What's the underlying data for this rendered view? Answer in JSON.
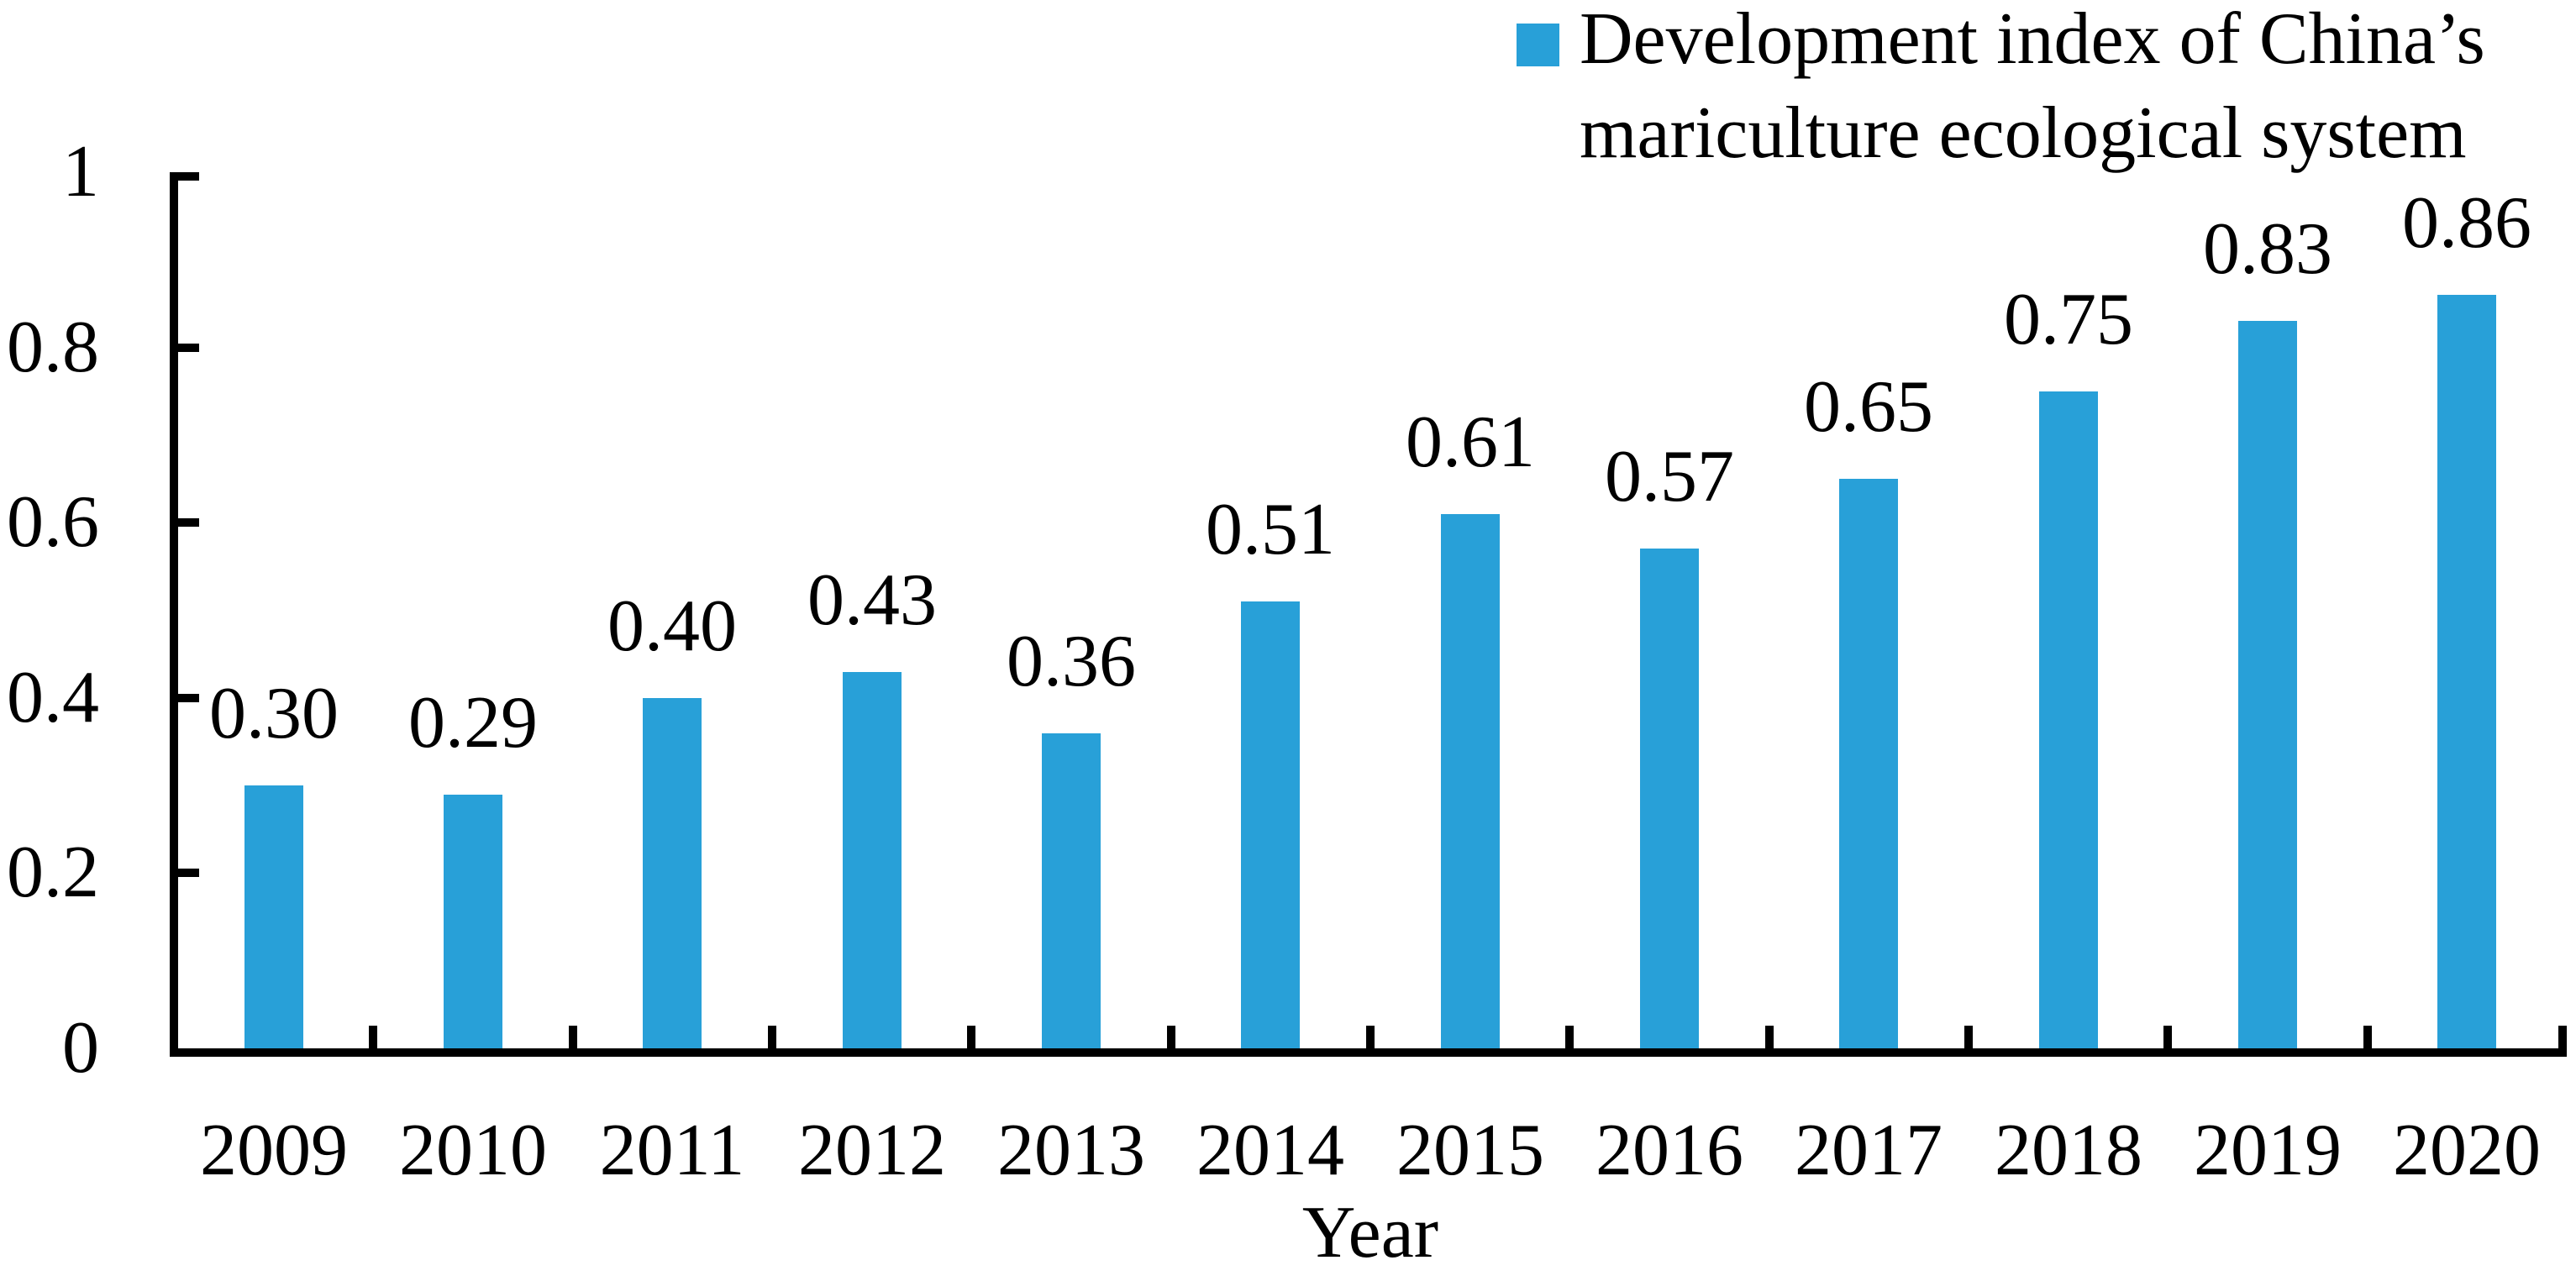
{
  "chart_data": {
    "type": "bar",
    "title": "",
    "xlabel": "Year",
    "ylabel": "",
    "categories": [
      "2009",
      "2010",
      "2011",
      "2012",
      "2013",
      "2014",
      "2015",
      "2016",
      "2017",
      "2018",
      "2019",
      "2020"
    ],
    "values": [
      0.3,
      0.29,
      0.4,
      0.43,
      0.36,
      0.51,
      0.61,
      0.57,
      0.65,
      0.75,
      0.83,
      0.86
    ],
    "value_labels": [
      "0.30",
      "0.29",
      "0.40",
      "0.43",
      "0.36",
      "0.51",
      "0.61",
      "0.57",
      "0.65",
      "0.75",
      "0.83",
      "0.86"
    ],
    "ylim": [
      0,
      1
    ],
    "yticks": [
      0,
      0.2,
      0.4,
      0.6,
      0.8,
      1
    ],
    "ytick_labels": [
      "0",
      "0.2",
      "0.4",
      "0.6",
      "0.8",
      "1"
    ],
    "grid": "off",
    "bar_color": "#28A0D8",
    "axis_color": "#000000",
    "legend": {
      "position": "top-right",
      "series_label": "Development index of China's mariculture ecological system",
      "label_lines": [
        "Development index of China’s",
        "mariculture ecological system"
      ]
    }
  }
}
